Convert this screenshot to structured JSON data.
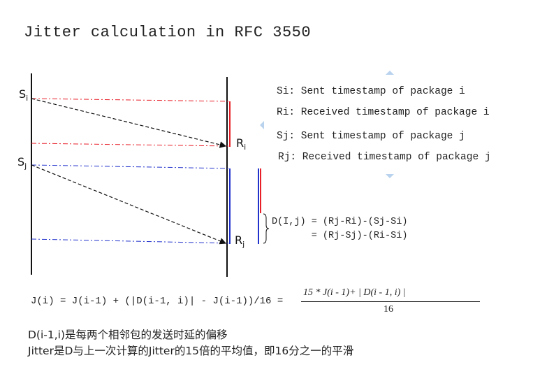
{
  "title": "Jitter calculation in RFC 3550",
  "labels": {
    "si": "S",
    "si_sub": "i",
    "sj": "S",
    "sj_sub": "j",
    "ri": "R",
    "ri_sub": "i",
    "rj": "R",
    "rj_sub": "j"
  },
  "legend": [
    "Si: Sent timestamp of package i",
    "Ri: Received timestamp of package i",
    "Sj: Sent timestamp of package j",
    "Rj: Received timestamp of package j"
  ],
  "d_formula": {
    "line1": "D(I,j) = (Rj-Ri)-(Sj-Si)",
    "line2": "       = (Rj-Sj)-(Ri-Si)"
  },
  "jitter_formula": {
    "lhs": "J(i) = J(i-1) + (|D(i-1, i)| - J(i-1))/16 =",
    "numerator": "15 * J(i - 1)+ | D(i - 1, i) |",
    "denominator": "16"
  },
  "notes": [
    "D(i-1,i)是每两个相邻包的发送时延的偏移",
    "Jitter是D与上一次计算的Jitter的15倍的平均值，即16分之一的平滑"
  ],
  "colors": {
    "red": "#e8202a",
    "blue": "#2233cc",
    "black": "#111111",
    "nav_arrow": "#b9d3ee"
  }
}
